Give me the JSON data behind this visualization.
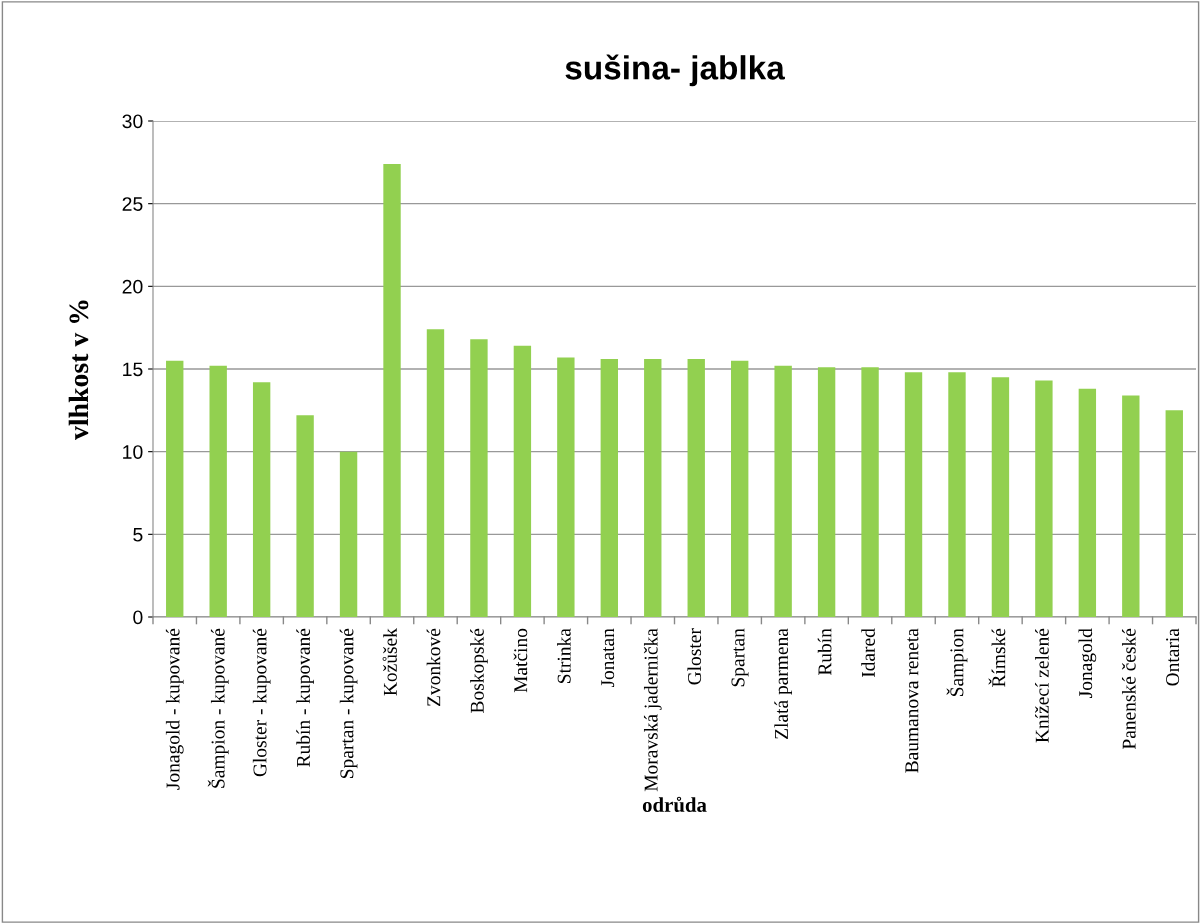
{
  "chart_data": {
    "type": "bar",
    "title": "sušina- jablka",
    "xlabel": "odrůda",
    "ylabel": "vlhkost v %",
    "categories": [
      "Jonagold - kupované",
      "Šampion - kupované",
      "Gloster - kupované",
      "Rubín - kupované",
      "Spartan - kupované",
      "Kožůšek",
      "Zvonkové",
      "Boskopské",
      "Matčino",
      "Strinka",
      "Jonatan",
      "Moravská jadernička",
      "Gloster",
      "Spartan",
      "Zlatá parmena",
      "Rubín",
      "Idared",
      "Baumanova reneta",
      "Šampion",
      "Římské",
      "Knížecí zelené",
      "Jonagold",
      "Panenské české",
      "Ontaria"
    ],
    "values": [
      15.5,
      15.2,
      14.2,
      12.2,
      10.0,
      27.4,
      17.4,
      16.8,
      16.4,
      15.7,
      15.6,
      15.6,
      15.6,
      15.5,
      15.2,
      15.1,
      15.1,
      14.8,
      14.8,
      14.5,
      14.3,
      13.8,
      13.4,
      12.5
    ],
    "color": "#92d050",
    "ylim": [
      0,
      30
    ],
    "yticks": [
      0,
      5,
      10,
      15,
      20,
      25,
      30
    ],
    "grid": "y",
    "legend": false
  }
}
